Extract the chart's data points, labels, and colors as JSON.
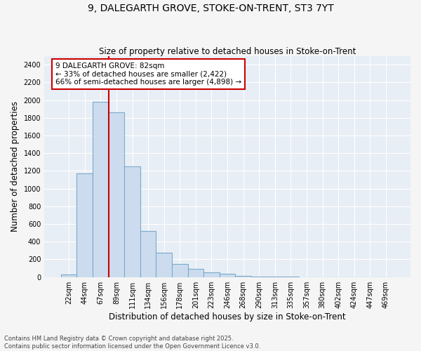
{
  "title_line1": "9, DALEGARTH GROVE, STOKE-ON-TRENT, ST3 7YT",
  "title_line2": "Size of property relative to detached houses in Stoke-on-Trent",
  "xlabel": "Distribution of detached houses by size in Stoke-on-Trent",
  "ylabel": "Number of detached properties",
  "categories": [
    "22sqm",
    "44sqm",
    "67sqm",
    "89sqm",
    "111sqm",
    "134sqm",
    "156sqm",
    "178sqm",
    "201sqm",
    "223sqm",
    "246sqm",
    "268sqm",
    "290sqm",
    "313sqm",
    "335sqm",
    "357sqm",
    "380sqm",
    "402sqm",
    "424sqm",
    "447sqm",
    "469sqm"
  ],
  "values": [
    30,
    1170,
    1980,
    1860,
    1250,
    520,
    275,
    150,
    90,
    50,
    35,
    10,
    5,
    3,
    2,
    1,
    0,
    0,
    0,
    0,
    0
  ],
  "bar_color": "#ccdcee",
  "bar_edge_color": "#7aaaca",
  "vline_color": "#cc0000",
  "vline_x": 2.5,
  "annotation_text": "9 DALEGARTH GROVE: 82sqm\n← 33% of detached houses are smaller (2,422)\n66% of semi-detached houses are larger (4,898) →",
  "annotation_box_color": "#ffffff",
  "annotation_box_edge": "#cc0000",
  "ylim": [
    0,
    2500
  ],
  "yticks": [
    0,
    200,
    400,
    600,
    800,
    1000,
    1200,
    1400,
    1600,
    1800,
    2000,
    2200,
    2400
  ],
  "footer_line1": "Contains HM Land Registry data © Crown copyright and database right 2025.",
  "footer_line2": "Contains public sector information licensed under the Open Government Licence v3.0.",
  "bg_color": "#f5f5f5",
  "plot_bg_color": "#e8eef5",
  "grid_color": "#ffffff",
  "title_fontsize": 10,
  "subtitle_fontsize": 8.5,
  "tick_fontsize": 7,
  "label_fontsize": 8.5,
  "annotation_fontsize": 7.5,
  "footer_fontsize": 6
}
